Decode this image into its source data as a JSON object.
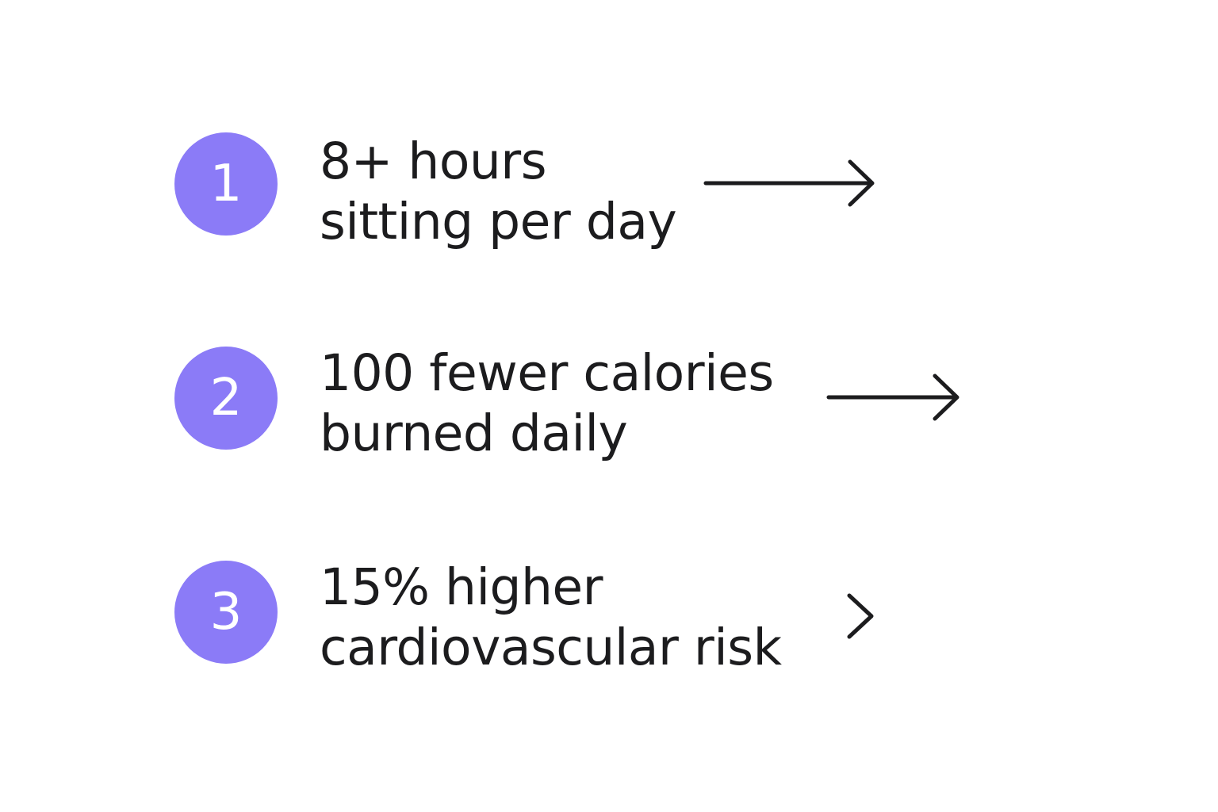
{
  "accent_color": "#8b7bf7",
  "items": [
    {
      "number": "1",
      "line1": "8+ hours",
      "line2": "sitting per day",
      "connector": "arrow-right-icon"
    },
    {
      "number": "2",
      "line1": "100 fewer calories",
      "line2": "burned daily",
      "connector": "arrow-right-icon"
    },
    {
      "number": "3",
      "line1": "15% higher",
      "line2": "cardiovascular risk",
      "connector": "chevron-right-icon"
    }
  ]
}
